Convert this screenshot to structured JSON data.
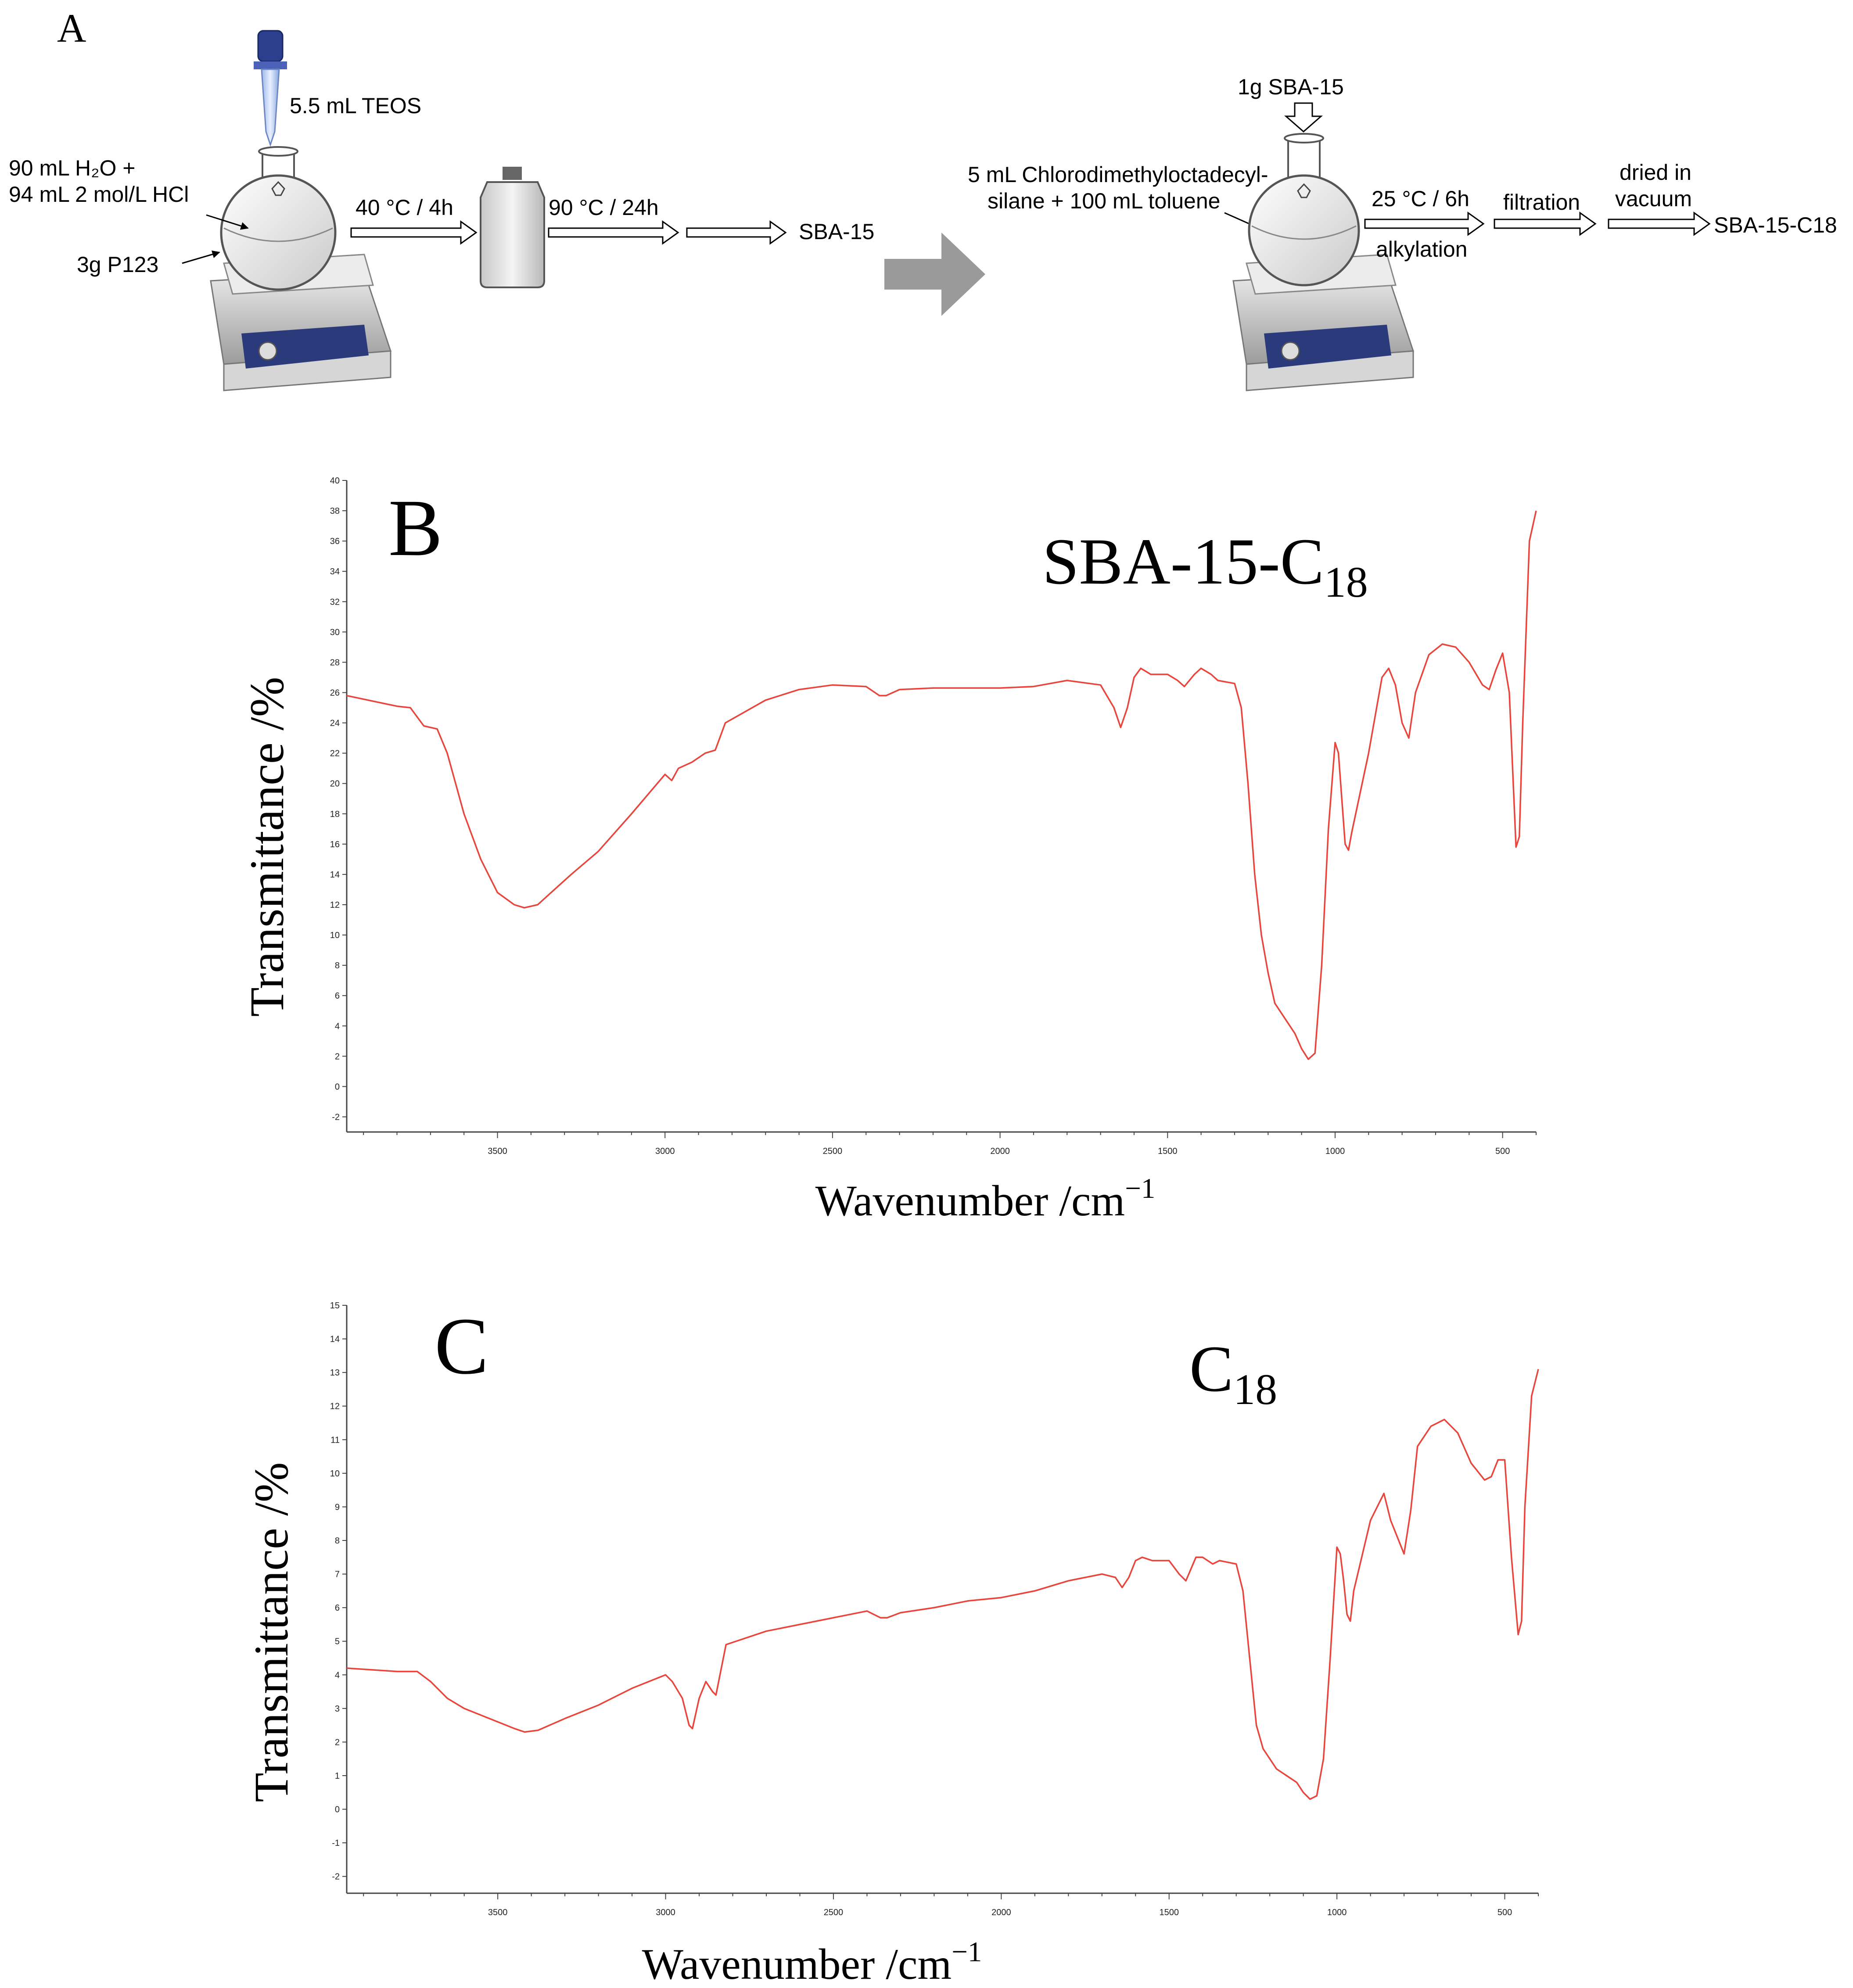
{
  "panel_a": {
    "letter": "A",
    "step1": {
      "reagent_teos": "5.5 mL TEOS",
      "reagent_water": "90 mL H₂O +",
      "reagent_hcl": "94 mL 2 mol/L HCl",
      "reagent_p123": "3g P123",
      "cond_1": "40 °C / 4h",
      "cond_2": "90 °C / 24h",
      "product": "SBA-15"
    },
    "step2": {
      "reagent_sba": "1g SBA-15",
      "reagent_silane_1": "5 mL Chlorodimethyloctadecyl-",
      "reagent_silane_2": "silane + 100 mL toluene",
      "cond": "25 °C / 6h",
      "cond_label": "alkylation",
      "filtration": "filtration",
      "dried_1": "dried in",
      "dried_2": "vacuum",
      "product": "SBA-15-C18"
    },
    "colors": {
      "big_arrow": "#9a9a9a",
      "hotplate_knob_panel": "#2b3a7a"
    }
  },
  "chart_data": [
    {
      "type": "line",
      "panel_letter": "B",
      "title": "SBA-15-C",
      "title_sub": "18",
      "xlabel": "Wavenumber /cm",
      "xlabel_sup": "−1",
      "ylabel": "Transmittance /%",
      "xlim": [
        3950,
        400
      ],
      "ylim": [
        -3,
        40
      ],
      "x_ticks": [
        3500,
        3000,
        2500,
        2000,
        1500,
        1000,
        500
      ],
      "y_ticks": [
        -2,
        0,
        2,
        4,
        6,
        8,
        10,
        12,
        14,
        16,
        18,
        20,
        22,
        24,
        26,
        28,
        30,
        32,
        34,
        36,
        38,
        40
      ],
      "line_color": "#e8453c",
      "series": [
        {
          "x": [
            3950,
            3800,
            3760,
            3720,
            3680,
            3650,
            3600,
            3550,
            3500,
            3450,
            3420,
            3380,
            3330,
            3280,
            3200,
            3100,
            3000,
            2980,
            2960,
            2920,
            2880,
            2850,
            2820,
            2700,
            2600,
            2500,
            2400,
            2360,
            2340,
            2300,
            2200,
            2000,
            1900,
            1800,
            1700,
            1660,
            1640,
            1620,
            1600,
            1580,
            1550,
            1500,
            1470,
            1450,
            1420,
            1400,
            1370,
            1350,
            1300,
            1280,
            1260,
            1240,
            1220,
            1200,
            1180,
            1150,
            1120,
            1100,
            1080,
            1060,
            1040,
            1020,
            1000,
            990,
            980,
            970,
            960,
            950,
            900,
            860,
            840,
            820,
            800,
            780,
            760,
            720,
            680,
            640,
            600,
            560,
            540,
            520,
            500,
            480,
            460,
            450,
            440,
            420,
            400
          ],
          "y": [
            25.8,
            25.1,
            25.0,
            23.8,
            23.6,
            22.0,
            18.0,
            15.0,
            12.8,
            12.0,
            11.8,
            12.0,
            13.0,
            14.0,
            15.5,
            18.0,
            20.6,
            20.2,
            21.0,
            21.4,
            22.0,
            22.2,
            24.0,
            25.5,
            26.2,
            26.5,
            26.4,
            25.8,
            25.8,
            26.2,
            26.3,
            26.3,
            26.4,
            26.8,
            26.5,
            25.0,
            23.7,
            25.0,
            27.0,
            27.6,
            27.2,
            27.2,
            26.8,
            26.4,
            27.2,
            27.6,
            27.2,
            26.8,
            26.6,
            25.0,
            20.0,
            14.0,
            10.0,
            7.5,
            5.5,
            4.5,
            3.5,
            2.5,
            1.8,
            2.2,
            8.0,
            17.0,
            22.7,
            22.0,
            19.0,
            16.0,
            15.6,
            16.8,
            22.0,
            27.0,
            27.6,
            26.5,
            24.0,
            23.0,
            26.0,
            28.5,
            29.2,
            29.0,
            28.0,
            26.5,
            26.2,
            27.5,
            28.6,
            26.0,
            15.8,
            16.5,
            24.0,
            36.0,
            38.0
          ]
        }
      ]
    },
    {
      "type": "line",
      "panel_letter": "C",
      "title": "C",
      "title_sub": "18",
      "xlabel": "Wavenumber /cm",
      "xlabel_sup": "−1",
      "ylabel": "Transmittance /%",
      "xlim": [
        3950,
        400
      ],
      "ylim": [
        -2.5,
        15
      ],
      "x_ticks": [
        3500,
        3000,
        2500,
        2000,
        1500,
        1000,
        500
      ],
      "y_ticks": [
        -2,
        -1,
        0,
        1,
        2,
        3,
        4,
        5,
        6,
        7,
        8,
        9,
        10,
        11,
        12,
        13,
        14,
        15
      ],
      "line_color": "#e8453c",
      "series": [
        {
          "x": [
            3950,
            3800,
            3740,
            3700,
            3650,
            3600,
            3500,
            3450,
            3420,
            3380,
            3300,
            3200,
            3100,
            3000,
            2980,
            2950,
            2930,
            2920,
            2900,
            2880,
            2860,
            2850,
            2820,
            2700,
            2600,
            2500,
            2400,
            2360,
            2340,
            2300,
            2200,
            2100,
            2000,
            1900,
            1800,
            1700,
            1660,
            1640,
            1620,
            1600,
            1580,
            1550,
            1500,
            1470,
            1450,
            1420,
            1400,
            1370,
            1350,
            1300,
            1280,
            1260,
            1240,
            1220,
            1200,
            1180,
            1150,
            1120,
            1100,
            1080,
            1060,
            1040,
            1020,
            1000,
            990,
            980,
            970,
            960,
            950,
            900,
            860,
            840,
            820,
            800,
            780,
            760,
            720,
            680,
            640,
            600,
            560,
            540,
            520,
            500,
            480,
            460,
            450,
            440,
            420,
            400
          ],
          "y": [
            4.2,
            4.1,
            4.1,
            3.8,
            3.3,
            3.0,
            2.6,
            2.4,
            2.3,
            2.35,
            2.7,
            3.1,
            3.6,
            4.0,
            3.8,
            3.3,
            2.5,
            2.4,
            3.3,
            3.8,
            3.5,
            3.4,
            4.9,
            5.3,
            5.5,
            5.7,
            5.9,
            5.7,
            5.7,
            5.85,
            6.0,
            6.2,
            6.3,
            6.5,
            6.8,
            7.0,
            6.9,
            6.6,
            6.9,
            7.4,
            7.5,
            7.4,
            7.4,
            7.0,
            6.8,
            7.5,
            7.5,
            7.3,
            7.4,
            7.3,
            6.5,
            4.5,
            2.5,
            1.8,
            1.5,
            1.2,
            1.0,
            0.8,
            0.5,
            0.3,
            0.4,
            1.5,
            4.5,
            7.8,
            7.6,
            6.8,
            5.8,
            5.6,
            6.5,
            8.6,
            9.4,
            8.6,
            8.1,
            7.6,
            8.9,
            10.8,
            11.4,
            11.6,
            11.2,
            10.3,
            9.8,
            9.9,
            10.4,
            10.4,
            7.5,
            5.2,
            5.6,
            9.0,
            12.3,
            13.1
          ]
        }
      ]
    }
  ]
}
